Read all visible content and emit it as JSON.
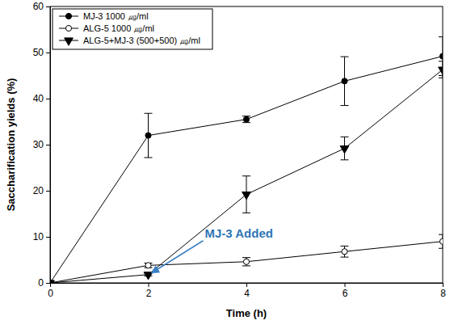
{
  "chart_data": {
    "type": "line",
    "x_label": "Time (h)",
    "y_label": "Saccharification yields (%)",
    "x": [
      0,
      2,
      4,
      6,
      8
    ],
    "xlim": [
      0,
      8
    ],
    "xticks": [
      0,
      2,
      4,
      6,
      8
    ],
    "ylim": [
      0,
      60
    ],
    "yticks": [
      0,
      10,
      20,
      30,
      40,
      50,
      60
    ],
    "grid": false,
    "legend": "upper left",
    "series": [
      {
        "name": "MJ-3 1000 ㎍/ml",
        "color": "#000000",
        "marker": "circle",
        "line_style": "solid",
        "values": [
          0,
          32,
          35.5,
          43.8,
          49.2
        ],
        "errors": [
          0,
          4.8,
          0.7,
          5.3,
          4.2
        ]
      },
      {
        "name": "ALG-5 1000 ㎍/ml",
        "color": "#000000",
        "marker": "circle-open",
        "line_style": "solid",
        "values": [
          0,
          3.8,
          4.6,
          6.8,
          9
        ],
        "errors": [
          0,
          0.5,
          0.9,
          1.2,
          1.5
        ]
      },
      {
        "name": "ALG-5+MJ-3 (500+500) ㎍/ml",
        "color": "#000000",
        "marker": "triangle-down",
        "line_style": "solid",
        "values": [
          0,
          1.8,
          19.2,
          29.2,
          46.3
        ],
        "errors": [
          0,
          0.3,
          4,
          2.5,
          1.8
        ]
      }
    ],
    "annotations": [
      {
        "text": "MJ-3 Added",
        "x": 2,
        "y": 1.8
      }
    ]
  }
}
